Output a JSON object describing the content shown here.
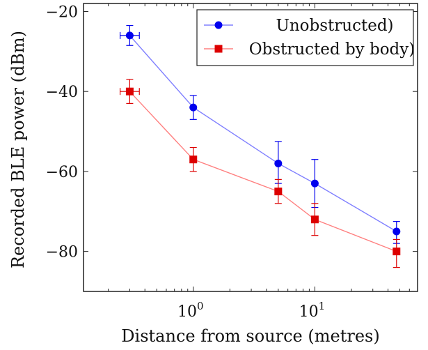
{
  "chart_data": {
    "type": "line",
    "xlabel": "Distance from source (metres)",
    "ylabel": "Recorded BLE power (dBm)",
    "x_scale": "log",
    "xlim": [
      0.125,
      70
    ],
    "ylim": [
      -90,
      -18
    ],
    "y_ticks": [
      -20,
      -40,
      -60,
      -80
    ],
    "y_tick_labels": [
      "−20",
      "−40",
      "−60",
      "−80"
    ],
    "x_ticks": [
      {
        "value": 1,
        "base": "10",
        "exp": "0"
      },
      {
        "value": 10,
        "base": "10",
        "exp": "1"
      }
    ],
    "grid": false,
    "legend_position": "top-right",
    "series": [
      {
        "name": "Unobstructed)",
        "color": "#0000ee",
        "line_color": "#8080ff",
        "marker": "circle",
        "points": [
          {
            "x": 0.3,
            "y": -26,
            "y_lo": -28.5,
            "y_hi": -23.5,
            "x_lo": 0.25,
            "x_hi": 0.36
          },
          {
            "x": 1,
            "y": -44,
            "y_lo": -47,
            "y_hi": -41
          },
          {
            "x": 5,
            "y": -58,
            "y_lo": -63,
            "y_hi": -52.5
          },
          {
            "x": 10,
            "y": -63,
            "y_lo": -69,
            "y_hi": -57
          },
          {
            "x": 47,
            "y": -75,
            "y_lo": -78,
            "y_hi": -72.5
          }
        ]
      },
      {
        "name": "Obstructed by body)",
        "color": "#dd0000",
        "line_color": "#ff8080",
        "marker": "square",
        "points": [
          {
            "x": 0.3,
            "y": -40,
            "y_lo": -43,
            "y_hi": -37,
            "x_lo": 0.25,
            "x_hi": 0.36
          },
          {
            "x": 1,
            "y": -57,
            "y_lo": -60,
            "y_hi": -54
          },
          {
            "x": 5,
            "y": -65,
            "y_lo": -68,
            "y_hi": -62
          },
          {
            "x": 10,
            "y": -72,
            "y_lo": -76,
            "y_hi": -68
          },
          {
            "x": 47,
            "y": -80,
            "y_lo": -84,
            "y_hi": -77
          }
        ]
      }
    ]
  }
}
